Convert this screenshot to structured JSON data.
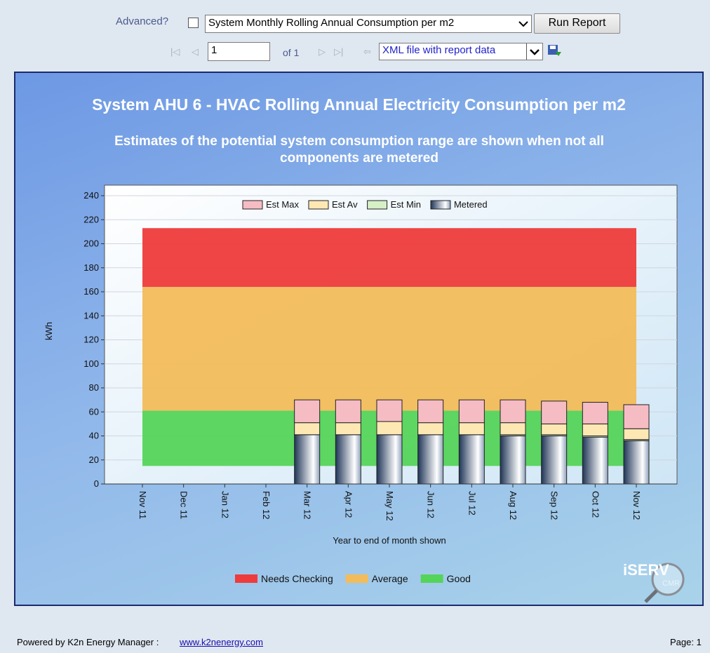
{
  "toolbar": {
    "advanced_label": "Advanced?",
    "report_select": "System Monthly Rolling Annual Consumption per m2",
    "run_button": "Run Report",
    "page_input": "1",
    "page_of": "of 1",
    "export_select": "XML file with report data"
  },
  "chart_data": {
    "type": "bar",
    "stacked": true,
    "title": "System AHU 6 - HVAC Rolling Annual Electricity Consumption per m2",
    "subtitle": "Estimates of the potential system consumption range are shown when not all components are metered",
    "y_label": "kWh",
    "x_label": "Year to end of month shown",
    "categories": [
      "Nov 11",
      "Dec 11",
      "Jan 12",
      "Feb 12",
      "Mar 12",
      "Apr 12",
      "May 12",
      "Jun 12",
      "Jul 12",
      "Aug 12",
      "Sep 12",
      "Oct 12",
      "Nov 12"
    ],
    "series": [
      {
        "name": "Metered",
        "color": "#1f3557",
        "values": [
          null,
          null,
          null,
          null,
          41,
          41,
          41,
          41,
          41,
          40,
          40,
          39,
          36
        ]
      },
      {
        "name": "Est Min",
        "color": "#d6efc6",
        "values": [
          null,
          null,
          null,
          null,
          0,
          0,
          0,
          0,
          0,
          1,
          1,
          1,
          1
        ]
      },
      {
        "name": "Est Av",
        "color": "#fde8b4",
        "values": [
          null,
          null,
          null,
          null,
          10,
          10,
          11,
          10,
          10,
          10,
          9,
          10,
          9
        ]
      },
      {
        "name": "Est Max",
        "color": "#f6bcc4",
        "values": [
          null,
          null,
          null,
          null,
          19,
          19,
          18,
          19,
          19,
          19,
          19,
          18,
          20
        ]
      }
    ],
    "legend_order": [
      3,
      2,
      1,
      0
    ],
    "bands": [
      {
        "name": "Needs Checking",
        "color": "#ee3b3b",
        "from": 164,
        "to": 213
      },
      {
        "name": "Average",
        "color": "#f2bc5a",
        "from": 61,
        "to": 164
      },
      {
        "name": "Good",
        "color": "#55d45a",
        "from": 15,
        "to": 61
      }
    ],
    "ylim": [
      0,
      240
    ],
    "yticks": [
      0,
      20,
      40,
      60,
      80,
      100,
      120,
      140,
      160,
      180,
      200,
      220,
      240
    ],
    "grid": true,
    "legend": "top",
    "logo": "iSERV",
    "logo_sub": "CMR"
  },
  "footer": {
    "powered_by": "Powered by K2n Energy Manager :",
    "link": "www.k2nenergy.com",
    "page": "Page: 1"
  }
}
